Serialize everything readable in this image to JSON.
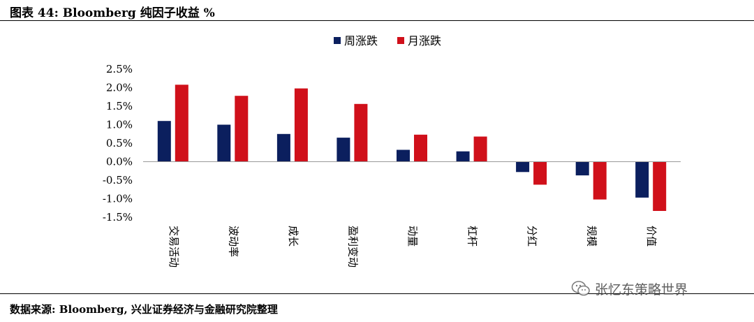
{
  "header": {
    "title": "图表 44:  Bloomberg 纯因子收益  %"
  },
  "footer": {
    "source": "数据来源: Bloomberg, 兴业证券经济与金融研究院整理"
  },
  "watermark": {
    "text": "张忆东策略世界",
    "icon": "wechat-icon"
  },
  "colors": {
    "weekly": "#0b1f5e",
    "monthly": "#d0101a"
  },
  "chart_data": {
    "type": "bar",
    "title": "",
    "categories": [
      "交易活动",
      "波动率",
      "成长",
      "盈利变动",
      "动量",
      "杠杆",
      "分红",
      "规模",
      "价值"
    ],
    "series": [
      {
        "name": "周涨跌",
        "values": [
          1.1,
          1.0,
          0.75,
          0.65,
          0.32,
          0.28,
          -0.28,
          -0.37,
          -0.97
        ]
      },
      {
        "name": "月涨跌",
        "values": [
          2.08,
          1.78,
          1.98,
          1.56,
          0.73,
          0.68,
          -0.62,
          -1.02,
          -1.33
        ]
      }
    ],
    "ylim": [
      -1.5,
      2.5
    ],
    "yticks": [
      "2.5%",
      "2.0%",
      "1.5%",
      "1.0%",
      "0.5%",
      "0.0%",
      "-0.5%",
      "-1.0%",
      "-1.5%"
    ],
    "ytick_values": [
      2.5,
      2.0,
      1.5,
      1.0,
      0.5,
      0.0,
      -0.5,
      -1.0,
      -1.5
    ],
    "legend": "top-center",
    "grid": false
  }
}
